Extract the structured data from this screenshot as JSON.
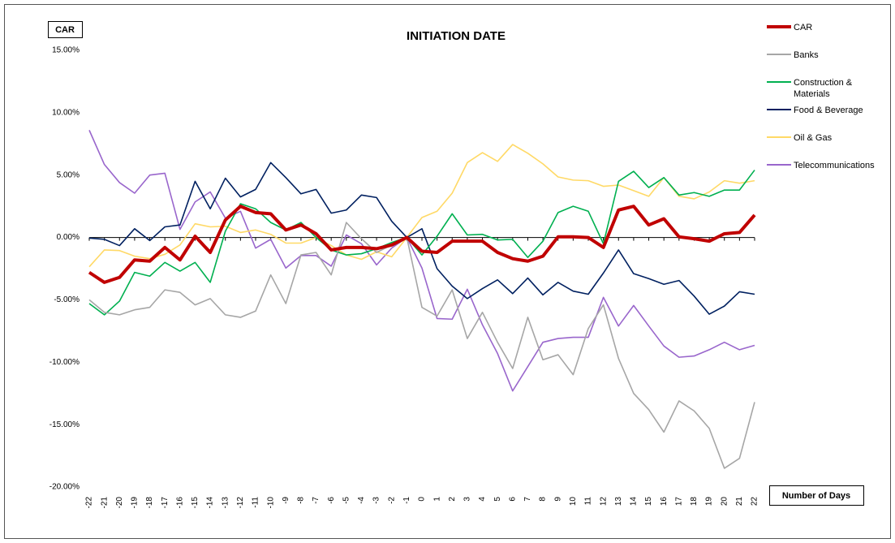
{
  "chart_data": {
    "type": "line",
    "title": "INITIATION DATE",
    "y_label": "CAR",
    "x_label": "Number of Days",
    "x": [
      -22,
      -21,
      -20,
      -19,
      -18,
      -17,
      -16,
      -15,
      -14,
      -13,
      -12,
      -11,
      -10,
      -9,
      -8,
      -7,
      -6,
      -5,
      -4,
      -3,
      -2,
      -1,
      0,
      1,
      2,
      3,
      4,
      5,
      6,
      7,
      8,
      9,
      10,
      11,
      12,
      13,
      14,
      15,
      16,
      17,
      18,
      19,
      20,
      21,
      22
    ],
    "xlim": [
      -22,
      22
    ],
    "ylim": [
      -20,
      15
    ],
    "yticks": [
      {
        "value": 15,
        "label": "15.00%"
      },
      {
        "value": 10,
        "label": "10.00%"
      },
      {
        "value": 5,
        "label": "5.00%"
      },
      {
        "value": 0,
        "label": "0.00%"
      },
      {
        "value": -5,
        "label": "-5.00%"
      },
      {
        "value": -10,
        "label": "-10.00%"
      },
      {
        "value": -15,
        "label": "-15.00%"
      },
      {
        "value": -20,
        "label": "-20.00%"
      }
    ],
    "series": [
      {
        "name": "CAR",
        "color": "#c00000",
        "width": 4,
        "values": [
          -2.8,
          -3.6,
          -3.2,
          -1.8,
          -1.9,
          -0.8,
          -1.8,
          0.1,
          -1.2,
          1.4,
          2.5,
          2.0,
          1.9,
          0.6,
          1.0,
          0.3,
          -1.0,
          -0.8,
          -0.8,
          -0.9,
          -0.6,
          0,
          -1.1,
          -1.2,
          -0.3,
          -0.3,
          -0.3,
          -1.2,
          -1.7,
          -1.9,
          -1.5,
          0.05,
          0.05,
          0,
          -0.8,
          2.2,
          2.5,
          1.0,
          1.5,
          0.05,
          -0.1,
          -0.3,
          0.3,
          0.4,
          1.8
        ]
      },
      {
        "name": "Banks",
        "color": "#a6a6a6",
        "width": 1.6,
        "values": [
          -5.0,
          -6.0,
          -6.2,
          -5.8,
          -5.6,
          -4.2,
          -4.4,
          -5.4,
          -4.9,
          -6.2,
          -6.4,
          -5.9,
          -3.0,
          -5.3,
          -1.4,
          -1.2,
          -3.0,
          1.2,
          -0.1,
          -1.2,
          -0.6,
          0,
          -5.6,
          -6.3,
          -4.2,
          -8.1,
          -6.0,
          -8.4,
          -10.5,
          -6.4,
          -9.8,
          -9.4,
          -11.0,
          -7.3,
          -5.4,
          -9.7,
          -12.5,
          -13.8,
          -15.6,
          -13.1,
          -13.9,
          -15.3,
          -18.5,
          -17.7,
          -13.2
        ]
      },
      {
        "name": "Construction & Materials",
        "color": "#00b050",
        "width": 1.6,
        "values": [
          -5.3,
          -6.2,
          -5.1,
          -2.8,
          -3.1,
          -2.0,
          -2.7,
          -2.0,
          -3.6,
          0.5,
          2.7,
          2.3,
          1.2,
          0.6,
          1.2,
          0,
          -1.0,
          -1.4,
          -1.3,
          -0.9,
          -0.4,
          0,
          -1.4,
          0.1,
          1.9,
          0.2,
          0.25,
          -0.2,
          -0.15,
          -1.6,
          -0.3,
          2.0,
          2.5,
          2.1,
          -0.5,
          4.5,
          5.3,
          4.0,
          4.8,
          3.4,
          3.6,
          3.3,
          3.8,
          3.8,
          5.4
        ]
      },
      {
        "name": "Food & Beverage",
        "color": "#002060",
        "width": 1.6,
        "values": [
          -0.05,
          -0.15,
          -0.65,
          0.7,
          -0.25,
          0.85,
          1.0,
          4.5,
          2.3,
          4.75,
          3.25,
          3.85,
          6.0,
          4.8,
          3.5,
          3.85,
          1.95,
          2.2,
          3.4,
          3.2,
          1.3,
          0,
          0.7,
          -2.5,
          -3.9,
          -4.9,
          -4.1,
          -3.4,
          -4.5,
          -3.25,
          -4.6,
          -3.6,
          -4.3,
          -4.55,
          -2.85,
          -1.0,
          -2.9,
          -3.3,
          -3.75,
          -3.45,
          -4.7,
          -6.15,
          -5.5,
          -4.35,
          -4.55
        ]
      },
      {
        "name": "Oil & Gas",
        "color": "#ffd966",
        "width": 1.6,
        "values": [
          -2.35,
          -1.0,
          -1.05,
          -1.5,
          -1.7,
          -1.35,
          -0.6,
          1.1,
          0.85,
          0.9,
          0.4,
          0.6,
          0.25,
          -0.45,
          -0.45,
          0,
          -0.65,
          -1.4,
          -1.75,
          -1.15,
          -1.55,
          0,
          1.6,
          2.1,
          3.55,
          6.0,
          6.8,
          6.1,
          7.45,
          6.75,
          5.9,
          4.85,
          4.6,
          4.55,
          4.1,
          4.2,
          3.75,
          3.3,
          4.8,
          3.3,
          3.1,
          3.65,
          4.55,
          4.35,
          4.55
        ]
      },
      {
        "name": "Telecommunications",
        "color": "#9966cc",
        "width": 1.6,
        "values": [
          8.6,
          5.85,
          4.4,
          3.55,
          5.0,
          5.15,
          0.65,
          2.85,
          3.65,
          1.55,
          2.1,
          -0.85,
          -0.15,
          -2.45,
          -1.45,
          -1.45,
          -2.3,
          0.2,
          -0.5,
          -2.2,
          -0.85,
          0,
          -2.45,
          -6.5,
          -6.55,
          -4.15,
          -7.0,
          -9.3,
          -12.3,
          -10.35,
          -8.4,
          -8.1,
          -8.0,
          -8.0,
          -4.8,
          -7.1,
          -5.45,
          -7.1,
          -8.7,
          -9.6,
          -9.5,
          -9.0,
          -8.4,
          -9.0,
          -8.65
        ]
      }
    ]
  }
}
